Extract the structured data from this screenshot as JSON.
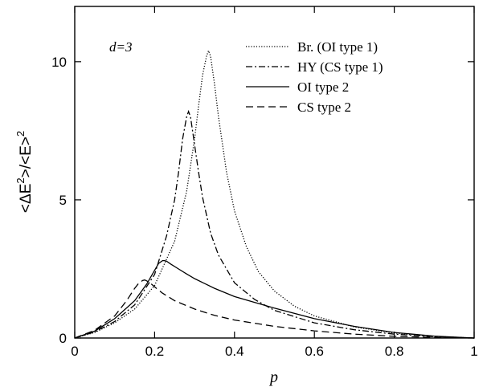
{
  "chart_data": {
    "type": "line",
    "xlabel": "p",
    "ylabel": "<ΔE²>/<E>²",
    "annotation": "d=3",
    "xlim": [
      0,
      1
    ],
    "ylim": [
      0,
      12
    ],
    "xticks": [
      0,
      0.2,
      0.4,
      0.6,
      0.8,
      1
    ],
    "xticklabels": [
      "0",
      "0.2",
      "0.4",
      "0.6",
      "0.8",
      "1"
    ],
    "yticks": [
      0,
      5,
      10
    ],
    "yticklabels": [
      "0",
      "5",
      "10"
    ],
    "legend_position": "top-right",
    "grid": false,
    "series": [
      {
        "name": "Br. (OI type 1)",
        "style": "dotted",
        "x": [
          0,
          0.05,
          0.1,
          0.15,
          0.2,
          0.25,
          0.28,
          0.3,
          0.31,
          0.32,
          0.33,
          0.335,
          0.34,
          0.35,
          0.36,
          0.38,
          0.4,
          0.43,
          0.46,
          0.5,
          0.55,
          0.6,
          0.7,
          0.8,
          0.9,
          1.0
        ],
        "y": [
          0,
          0.2,
          0.55,
          1.05,
          1.9,
          3.5,
          5.3,
          7.2,
          8.4,
          9.5,
          10.2,
          10.4,
          10.2,
          9.2,
          8.0,
          6.0,
          4.6,
          3.3,
          2.4,
          1.7,
          1.15,
          0.8,
          0.4,
          0.18,
          0.06,
          0
        ]
      },
      {
        "name": "HY (CS type 1)",
        "style": "dashdot",
        "x": [
          0,
          0.05,
          0.1,
          0.15,
          0.2,
          0.23,
          0.25,
          0.26,
          0.27,
          0.28,
          0.285,
          0.29,
          0.3,
          0.31,
          0.32,
          0.34,
          0.36,
          0.4,
          0.45,
          0.5,
          0.6,
          0.7,
          0.8,
          0.9,
          1.0
        ],
        "y": [
          0,
          0.22,
          0.6,
          1.2,
          2.3,
          3.7,
          5.0,
          6.0,
          7.2,
          8.0,
          8.2,
          8.0,
          7.0,
          6.0,
          5.1,
          3.8,
          3.0,
          2.0,
          1.4,
          1.0,
          0.55,
          0.3,
          0.14,
          0.05,
          0
        ]
      },
      {
        "name": "OI type 2",
        "style": "solid",
        "x": [
          0,
          0.05,
          0.1,
          0.15,
          0.18,
          0.2,
          0.21,
          0.22,
          0.225,
          0.23,
          0.24,
          0.26,
          0.28,
          0.3,
          0.35,
          0.4,
          0.5,
          0.6,
          0.7,
          0.8,
          0.9,
          1.0
        ],
        "y": [
          0,
          0.25,
          0.7,
          1.35,
          1.95,
          2.45,
          2.7,
          2.8,
          2.8,
          2.78,
          2.68,
          2.5,
          2.32,
          2.15,
          1.8,
          1.5,
          1.08,
          0.7,
          0.42,
          0.2,
          0.07,
          0
        ]
      },
      {
        "name": "CS type 2",
        "style": "dashed",
        "x": [
          0,
          0.05,
          0.1,
          0.13,
          0.15,
          0.16,
          0.17,
          0.175,
          0.18,
          0.19,
          0.2,
          0.22,
          0.25,
          0.3,
          0.35,
          0.4,
          0.5,
          0.6,
          0.7,
          0.8,
          0.9,
          1.0
        ],
        "y": [
          0,
          0.28,
          0.8,
          1.35,
          1.8,
          1.98,
          2.08,
          2.1,
          2.07,
          1.98,
          1.85,
          1.62,
          1.35,
          1.05,
          0.82,
          0.65,
          0.42,
          0.26,
          0.14,
          0.06,
          0.02,
          0
        ]
      }
    ]
  }
}
